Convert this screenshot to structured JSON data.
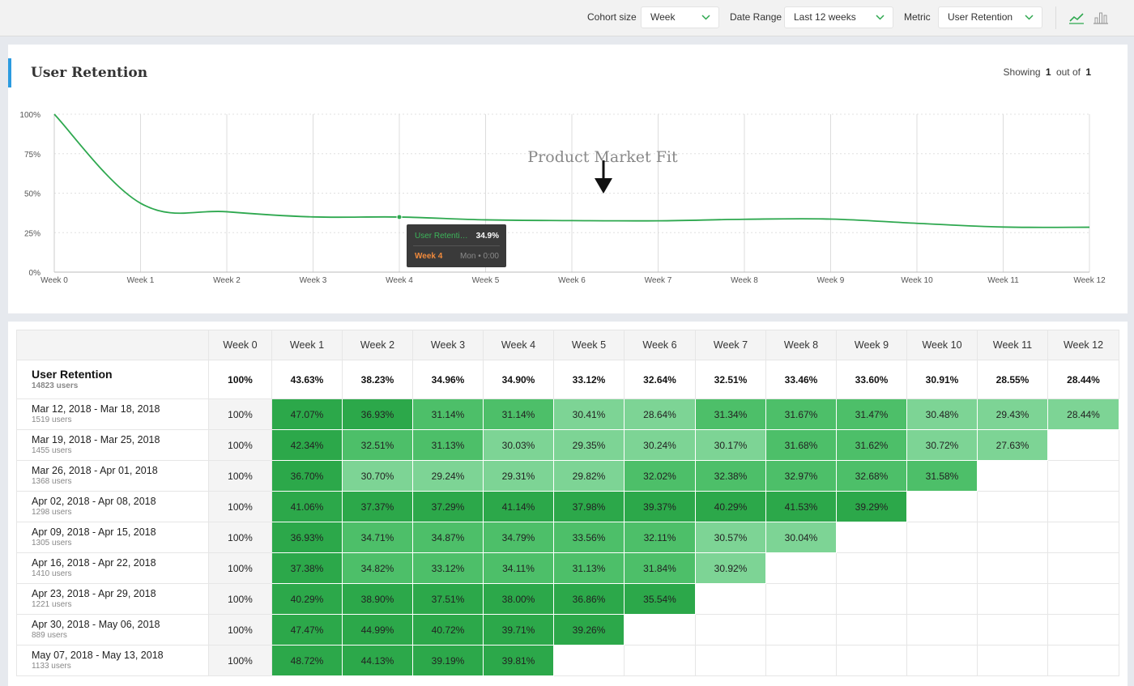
{
  "controls": {
    "cohort_size": {
      "label": "Cohort size",
      "value": "Week"
    },
    "date_range": {
      "label": "Date Range",
      "value": "Last 12 weeks"
    },
    "metric": {
      "label": "Metric",
      "value": "User Retention"
    }
  },
  "chart_card": {
    "title": "User Retention",
    "showing_prefix": "Showing",
    "showing_current": "1",
    "showing_mid": "out of",
    "showing_total": "1",
    "annotation": "Product Market Fit",
    "tooltip": {
      "series": "User Retention",
      "value": "34.9%",
      "week": "Week 4",
      "date": "Mon • 0:00"
    }
  },
  "chart_data": {
    "type": "line",
    "x": [
      "Week 0",
      "Week 1",
      "Week 2",
      "Week 3",
      "Week 4",
      "Week 5",
      "Week 6",
      "Week 7",
      "Week 8",
      "Week 9",
      "Week 10",
      "Week 11",
      "Week 12"
    ],
    "series": [
      {
        "name": "User Retention",
        "values": [
          100,
          43.63,
          38.23,
          34.96,
          34.9,
          33.12,
          32.64,
          32.51,
          33.46,
          33.6,
          30.91,
          28.55,
          28.44
        ]
      }
    ],
    "y_ticks": [
      "100%",
      "75%",
      "50%",
      "25%",
      "0%"
    ],
    "ylim": [
      0,
      100
    ],
    "grid": true,
    "color": "#2ea84f"
  },
  "table": {
    "corner": "",
    "headers": [
      "Week 0",
      "Week 1",
      "Week 2",
      "Week 3",
      "Week 4",
      "Week 5",
      "Week 6",
      "Week 7",
      "Week 8",
      "Week 9",
      "Week 10",
      "Week 11",
      "Week 12"
    ],
    "summary": {
      "name": "User Retention",
      "users": "14823 users",
      "values": [
        "100%",
        "43.63%",
        "38.23%",
        "34.96%",
        "34.90%",
        "33.12%",
        "32.64%",
        "32.51%",
        "33.46%",
        "33.60%",
        "30.91%",
        "28.55%",
        "28.44%"
      ]
    },
    "rows": [
      {
        "name": "Mar 12, 2018 - Mar 18, 2018",
        "users": "1519 users",
        "values": [
          "100%",
          "47.07%",
          "36.93%",
          "31.14%",
          "31.14%",
          "30.41%",
          "28.64%",
          "31.34%",
          "31.67%",
          "31.47%",
          "30.48%",
          "29.43%",
          "28.44%"
        ]
      },
      {
        "name": "Mar 19, 2018 - Mar 25, 2018",
        "users": "1455 users",
        "values": [
          "100%",
          "42.34%",
          "32.51%",
          "31.13%",
          "30.03%",
          "29.35%",
          "30.24%",
          "30.17%",
          "31.68%",
          "31.62%",
          "30.72%",
          "27.63%"
        ]
      },
      {
        "name": "Mar 26, 2018 - Apr 01, 2018",
        "users": "1368 users",
        "values": [
          "100%",
          "36.70%",
          "30.70%",
          "29.24%",
          "29.31%",
          "29.82%",
          "32.02%",
          "32.38%",
          "32.97%",
          "32.68%",
          "31.58%"
        ]
      },
      {
        "name": "Apr 02, 2018 - Apr 08, 2018",
        "users": "1298 users",
        "values": [
          "100%",
          "41.06%",
          "37.37%",
          "37.29%",
          "41.14%",
          "37.98%",
          "39.37%",
          "40.29%",
          "41.53%",
          "39.29%"
        ]
      },
      {
        "name": "Apr 09, 2018 - Apr 15, 2018",
        "users": "1305 users",
        "values": [
          "100%",
          "36.93%",
          "34.71%",
          "34.87%",
          "34.79%",
          "33.56%",
          "32.11%",
          "30.57%",
          "30.04%"
        ]
      },
      {
        "name": "Apr 16, 2018 - Apr 22, 2018",
        "users": "1410 users",
        "values": [
          "100%",
          "37.38%",
          "34.82%",
          "33.12%",
          "34.11%",
          "31.13%",
          "31.84%",
          "30.92%"
        ]
      },
      {
        "name": "Apr 23, 2018 - Apr 29, 2018",
        "users": "1221 users",
        "values": [
          "100%",
          "40.29%",
          "38.90%",
          "37.51%",
          "38.00%",
          "36.86%",
          "35.54%"
        ]
      },
      {
        "name": "Apr 30, 2018 - May 06, 2018",
        "users": "889 users",
        "values": [
          "100%",
          "47.47%",
          "44.99%",
          "40.72%",
          "39.71%",
          "39.26%"
        ]
      },
      {
        "name": "May 07, 2018 - May 13, 2018",
        "users": "1133 users",
        "values": [
          "100%",
          "48.72%",
          "44.13%",
          "39.19%",
          "39.81%"
        ]
      }
    ]
  },
  "colors": {
    "dark_green": "#2ca84a",
    "mid_green": "#4dbf69",
    "light_green": "#7dd495",
    "accent": "#2b9be0"
  }
}
